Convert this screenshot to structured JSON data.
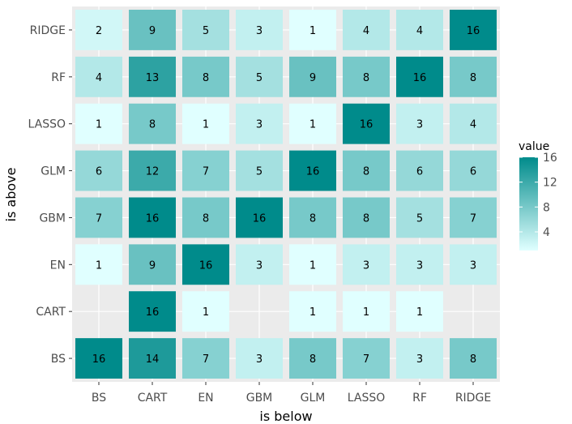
{
  "chart_data": {
    "type": "heatmap",
    "xlabel": "is below",
    "ylabel": "is above",
    "x_categories": [
      "BS",
      "CART",
      "EN",
      "GBM",
      "GLM",
      "LASSO",
      "RF",
      "RIDGE"
    ],
    "y_categories": [
      "BS",
      "CART",
      "EN",
      "GBM",
      "GLM",
      "LASSO",
      "RF",
      "RIDGE"
    ],
    "values": [
      [
        16,
        14,
        7,
        3,
        8,
        7,
        3,
        8
      ],
      [
        null,
        16,
        1,
        null,
        1,
        1,
        1,
        null
      ],
      [
        1,
        9,
        16,
        3,
        1,
        3,
        3,
        3
      ],
      [
        7,
        16,
        8,
        16,
        8,
        8,
        5,
        7
      ],
      [
        6,
        12,
        7,
        5,
        16,
        8,
        6,
        6
      ],
      [
        1,
        8,
        1,
        3,
        1,
        16,
        3,
        4
      ],
      [
        4,
        13,
        8,
        5,
        9,
        8,
        16,
        8
      ],
      [
        2,
        9,
        5,
        3,
        1,
        4,
        4,
        16
      ]
    ],
    "legend": {
      "title": "value",
      "ticks": [
        4,
        8,
        12,
        16
      ],
      "position": "right"
    },
    "color_scale": {
      "low": "#e0ffff",
      "high": "#008b8b",
      "min": 1,
      "max": 16
    },
    "panel_background": "#ebebeb",
    "grid": true
  }
}
